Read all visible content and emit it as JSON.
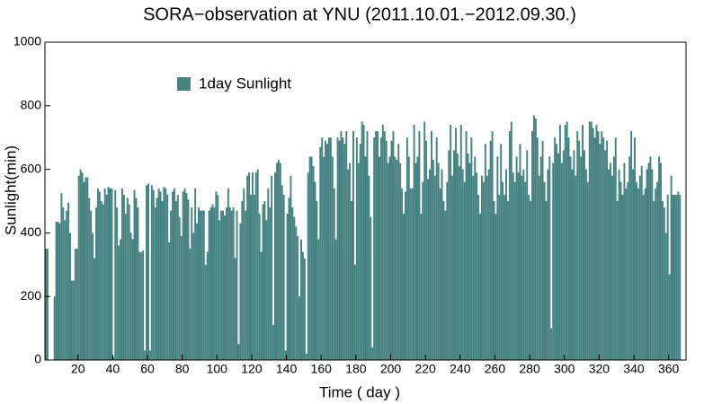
{
  "chart_data": {
    "type": "bar",
    "title": "SORA−observation at YNU (2011.10.01.−2012.09.30.)",
    "x_label": "Time ( day )",
    "y_label": "Sunlight(min)",
    "xlim": [
      1,
      370
    ],
    "ylim": [
      0,
      1000
    ],
    "xticks": [
      20,
      40,
      60,
      80,
      100,
      120,
      140,
      160,
      180,
      200,
      220,
      240,
      260,
      280,
      300,
      320,
      340,
      360
    ],
    "yticks": [
      0,
      200,
      400,
      600,
      800,
      1000
    ],
    "legend": "upper left",
    "x": [
      1,
      2,
      3,
      4,
      5,
      6,
      7,
      8,
      9,
      10,
      11,
      12,
      13,
      14,
      15,
      16,
      17,
      18,
      19,
      20,
      21,
      22,
      23,
      24,
      25,
      26,
      27,
      28,
      29,
      30,
      31,
      32,
      33,
      34,
      35,
      36,
      37,
      38,
      39,
      40,
      41,
      42,
      43,
      44,
      45,
      46,
      47,
      48,
      49,
      50,
      51,
      52,
      53,
      54,
      55,
      56,
      57,
      58,
      59,
      60,
      61,
      62,
      63,
      64,
      65,
      66,
      67,
      68,
      69,
      70,
      71,
      72,
      73,
      74,
      75,
      76,
      77,
      78,
      79,
      80,
      81,
      82,
      83,
      84,
      85,
      86,
      87,
      88,
      89,
      90,
      91,
      92,
      93,
      94,
      95,
      96,
      97,
      98,
      99,
      100,
      101,
      102,
      103,
      104,
      105,
      106,
      107,
      108,
      109,
      110,
      111,
      112,
      113,
      114,
      115,
      116,
      117,
      118,
      119,
      120,
      121,
      122,
      123,
      124,
      125,
      126,
      127,
      128,
      129,
      130,
      131,
      132,
      133,
      134,
      135,
      136,
      137,
      138,
      139,
      140,
      141,
      142,
      143,
      144,
      145,
      146,
      147,
      148,
      149,
      150,
      151,
      152,
      153,
      154,
      155,
      156,
      157,
      158,
      159,
      160,
      161,
      162,
      163,
      164,
      165,
      166,
      167,
      168,
      169,
      170,
      171,
      172,
      173,
      174,
      175,
      176,
      177,
      178,
      179,
      180,
      181,
      182,
      183,
      184,
      185,
      186,
      187,
      188,
      189,
      190,
      191,
      192,
      193,
      194,
      195,
      196,
      197,
      198,
      199,
      200,
      201,
      202,
      203,
      204,
      205,
      206,
      207,
      208,
      209,
      210,
      211,
      212,
      213,
      214,
      215,
      216,
      217,
      218,
      219,
      220,
      221,
      222,
      223,
      224,
      225,
      226,
      227,
      228,
      229,
      230,
      231,
      232,
      233,
      234,
      235,
      236,
      237,
      238,
      239,
      240,
      241,
      242,
      243,
      244,
      245,
      246,
      247,
      248,
      249,
      250,
      251,
      252,
      253,
      254,
      255,
      256,
      257,
      258,
      259,
      260,
      261,
      262,
      263,
      264,
      265,
      266,
      267,
      268,
      269,
      270,
      271,
      272,
      273,
      274,
      275,
      276,
      277,
      278,
      279,
      280,
      281,
      282,
      283,
      284,
      285,
      286,
      287,
      288,
      289,
      290,
      291,
      292,
      293,
      294,
      295,
      296,
      297,
      298,
      299,
      300,
      301,
      302,
      303,
      304,
      305,
      306,
      307,
      308,
      309,
      310,
      311,
      312,
      313,
      314,
      315,
      316,
      317,
      318,
      319,
      320,
      321,
      322,
      323,
      324,
      325,
      326,
      327,
      328,
      329,
      330,
      331,
      332,
      333,
      334,
      335,
      336,
      337,
      338,
      339,
      340,
      341,
      342,
      343,
      344,
      345,
      346,
      347,
      348,
      349,
      350,
      351,
      352,
      353,
      354,
      355,
      356,
      357,
      358,
      359,
      360,
      361,
      362,
      363,
      364,
      365,
      366
    ],
    "series": [
      {
        "name": "1day Sunlight",
        "color": "#468282",
        "values": [
          350,
          350,
          0,
          0,
          0,
          200,
          435,
          435,
          430,
          525,
          480,
          440,
          470,
          495,
          400,
          250,
          250,
          350,
          350,
          580,
          600,
          590,
          560,
          575,
          575,
          510,
          470,
          400,
          320,
          480,
          540,
          530,
          500,
          490,
          540,
          520,
          545,
          540,
          540,
          10,
          535,
          480,
          360,
          380,
          540,
          520,
          460,
          510,
          490,
          400,
          380,
          535,
          510,
          480,
          340,
          340,
          345,
          30,
          550,
          555,
          30,
          550,
          535,
          480,
          510,
          540,
          530,
          500,
          545,
          540,
          520,
          370,
          470,
          530,
          540,
          500,
          520,
          450,
          390,
          530,
          540,
          525,
          505,
          350,
          480,
          400,
          540,
          430,
          480,
          470,
          470,
          470,
          300,
          340,
          470,
          480,
          490,
          480,
          530,
          520,
          440,
          470,
          470,
          455,
          480,
          540,
          480,
          470,
          480,
          320,
          470,
          50,
          430,
          500,
          540,
          470,
          580,
          590,
          520,
          590,
          520,
          590,
          600,
          460,
          340,
          490,
          500,
          440,
          540,
          480,
          580,
          110,
          590,
          620,
          630,
          620,
          550,
          520,
          30,
          460,
          510,
          580,
          480,
          450,
          420,
          390,
          200,
          380,
          340,
          320,
          20,
          590,
          640,
          640,
          610,
          560,
          500,
          380,
          670,
          700,
          640,
          690,
          680,
          700,
          700,
          640,
          540,
          380,
          700,
          690,
          720,
          700,
          680,
          720,
          600,
          620,
          500,
          720,
          300,
          700,
          620,
          680,
          750,
          740,
          640,
          720,
          580,
          450,
          40,
          700,
          720,
          720,
          640,
          700,
          740,
          720,
          690,
          620,
          640,
          690,
          720,
          640,
          630,
          680,
          620,
          540,
          460,
          530,
          700,
          640,
          540,
          540,
          740,
          620,
          640,
          720,
          460,
          560,
          750,
          690,
          570,
          600,
          720,
          630,
          580,
          700,
          620,
          540,
          600,
          500,
          470,
          560,
          660,
          740,
          580,
          660,
          730,
          650,
          610,
          740,
          600,
          560,
          720,
          650,
          620,
          700,
          580,
          640,
          590,
          520,
          460,
          580,
          560,
          680,
          580,
          600,
          690,
          720,
          500,
          460,
          640,
          520,
          680,
          560,
          520,
          600,
          500,
          720,
          750,
          590,
          560,
          640,
          590,
          680,
          580,
          600,
          560,
          660,
          520,
          500,
          720,
          770,
          760,
          700,
          580,
          640,
          690,
          560,
          500,
          600,
          640,
          100,
          620,
          700,
          680,
          650,
          740,
          620,
          660,
          740,
          750,
          700,
          640,
          600,
          660,
          580,
          720,
          690,
          640,
          740,
          660,
          600,
          560,
          750,
          750,
          730,
          700,
          740,
          720,
          680,
          720,
          700,
          660,
          690,
          600,
          620,
          580,
          640,
          700,
          500,
          600,
          560,
          520,
          620,
          540,
          560,
          640,
          720,
          600,
          700,
          560,
          540,
          580,
          610,
          520,
          540,
          600,
          620,
          640,
          600,
          500,
          540,
          560,
          640,
          620,
          500,
          480,
          400,
          520,
          270,
          580,
          520,
          520,
          520,
          530,
          520
        ]
      }
    ]
  }
}
